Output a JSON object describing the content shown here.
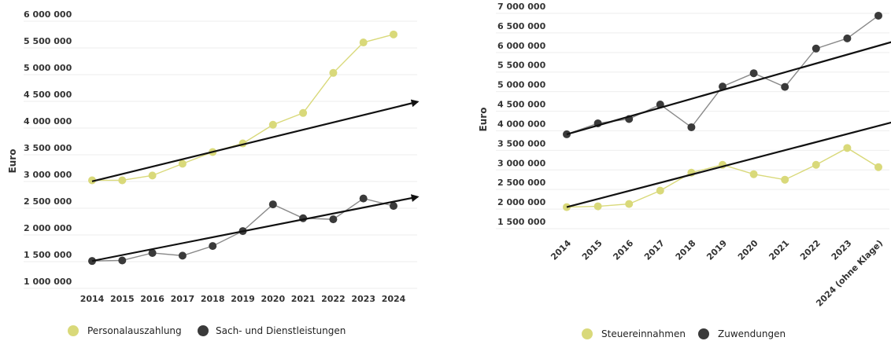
{
  "chart_data": [
    {
      "type": "line",
      "ylabel": "Euro",
      "ylim": [
        1000000,
        6000000
      ],
      "yticks": [
        "6 000 000",
        "5 500 000",
        "5 000 000",
        "4 500 000",
        "4 000 000",
        "3 500 000",
        "3 000 000",
        "2 500 000",
        "2 000 000",
        "1 500 000",
        "1 000 000"
      ],
      "categories": [
        "2014",
        "2015",
        "2016",
        "2017",
        "2018",
        "2019",
        "2020",
        "2021",
        "2022",
        "2023",
        "2024"
      ],
      "series": [
        {
          "name": "Personalauszahlung",
          "color": "#d9d97a",
          "values": [
            2890000,
            2890000,
            2980000,
            3200000,
            3420000,
            3580000,
            3930000,
            4150000,
            4900000,
            5470000,
            5620000
          ]
        },
        {
          "name": "Sach- und Dienstleistungen",
          "color": "#3a3a3a",
          "values": [
            1380000,
            1390000,
            1530000,
            1480000,
            1660000,
            1940000,
            2440000,
            2180000,
            2160000,
            2550000,
            2410000
          ]
        }
      ],
      "trends": [
        {
          "from": [
            2014,
            2870000
          ],
          "to": [
            2024.8,
            4360000
          ]
        },
        {
          "from": [
            2014,
            1380000
          ],
          "to": [
            2024.8,
            2580000
          ]
        }
      ],
      "legend_position": "bottom"
    },
    {
      "type": "line",
      "ylabel": "Euro",
      "ylim": [
        1500000,
        7000000
      ],
      "yticks": [
        "7 000 000",
        "6 500 000",
        "6 000 000",
        "5 500 000",
        "5 000 000",
        "4 500 000",
        "4 000 000",
        "3 500 000",
        "3 000 000",
        "2 500 000",
        "2 000 000",
        "1 500 000"
      ],
      "categories": [
        "2014",
        "2015",
        "2016",
        "2017",
        "2018",
        "2019",
        "2020",
        "2021",
        "2022",
        "2023",
        "2024 (ohne Klage)"
      ],
      "series": [
        {
          "name": "Steuereinnahmen",
          "color": "#d9d97a",
          "values": [
            1870000,
            1890000,
            1950000,
            2290000,
            2750000,
            2950000,
            2710000,
            2570000,
            2950000,
            3380000,
            2890000
          ]
        },
        {
          "name": "Zuwendungen",
          "color": "#3a3a3a",
          "values": [
            3730000,
            4010000,
            4120000,
            4490000,
            3910000,
            4950000,
            5290000,
            4940000,
            5920000,
            6180000,
            6760000
          ]
        }
      ],
      "trends": [
        {
          "from": [
            2014,
            3730000
          ],
          "to": [
            2024.7,
            6150000
          ]
        },
        {
          "from": [
            2014,
            1870000
          ],
          "to": [
            2024.7,
            4090000
          ]
        }
      ],
      "legend_position": "bottom"
    }
  ]
}
